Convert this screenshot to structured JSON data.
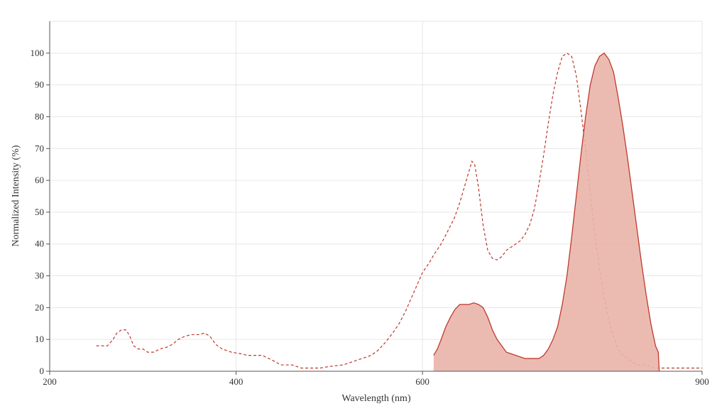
{
  "chart_data": {
    "type": "line",
    "title": "",
    "xlabel": "Wavelength (nm)",
    "ylabel": "Normalized Intensity (%)",
    "xlim": [
      200,
      900
    ],
    "ylim": [
      0,
      110
    ],
    "x_ticks": [
      200,
      400,
      600,
      900
    ],
    "y_ticks": [
      0,
      10,
      20,
      30,
      40,
      50,
      60,
      70,
      80,
      90,
      100
    ],
    "grid": true,
    "legend": "none",
    "colors": {
      "series": "#c0392b",
      "fill": "#e9b4aa"
    },
    "series": [
      {
        "style": "dashed",
        "fill": false,
        "points": [
          [
            250,
            8
          ],
          [
            262,
            8
          ],
          [
            268,
            10
          ],
          [
            272,
            12
          ],
          [
            277,
            13
          ],
          [
            282,
            13
          ],
          [
            286,
            11
          ],
          [
            290,
            8
          ],
          [
            295,
            7
          ],
          [
            300,
            7
          ],
          [
            305,
            6
          ],
          [
            312,
            6
          ],
          [
            318,
            7
          ],
          [
            325,
            7.5
          ],
          [
            332,
            8.5
          ],
          [
            338,
            10
          ],
          [
            345,
            11
          ],
          [
            352,
            11.5
          ],
          [
            360,
            11.5
          ],
          [
            366,
            12
          ],
          [
            372,
            11
          ],
          [
            378,
            8.5
          ],
          [
            385,
            7
          ],
          [
            395,
            6
          ],
          [
            405,
            5.5
          ],
          [
            412,
            5
          ],
          [
            428,
            5
          ],
          [
            435,
            4
          ],
          [
            442,
            3
          ],
          [
            448,
            2
          ],
          [
            460,
            2
          ],
          [
            465,
            1.5
          ],
          [
            470,
            1
          ],
          [
            490,
            1
          ],
          [
            500,
            1.5
          ],
          [
            515,
            2
          ],
          [
            525,
            3
          ],
          [
            535,
            4
          ],
          [
            545,
            5
          ],
          [
            552,
            6.5
          ],
          [
            560,
            9
          ],
          [
            568,
            12
          ],
          [
            575,
            15
          ],
          [
            582,
            19
          ],
          [
            588,
            23
          ],
          [
            594,
            27
          ],
          [
            600,
            31
          ],
          [
            607,
            34
          ],
          [
            613,
            37
          ],
          [
            620,
            40
          ],
          [
            627,
            44
          ],
          [
            634,
            48
          ],
          [
            640,
            53
          ],
          [
            645,
            58
          ],
          [
            650,
            63
          ],
          [
            653,
            66
          ],
          [
            656,
            65
          ],
          [
            660,
            58
          ],
          [
            665,
            46
          ],
          [
            670,
            38
          ],
          [
            675,
            35.5
          ],
          [
            680,
            35
          ],
          [
            685,
            36
          ],
          [
            690,
            38
          ],
          [
            695,
            39
          ],
          [
            700,
            40
          ],
          [
            705,
            41
          ],
          [
            710,
            43
          ],
          [
            715,
            46
          ],
          [
            720,
            51
          ],
          [
            725,
            59
          ],
          [
            730,
            68
          ],
          [
            735,
            78
          ],
          [
            740,
            87
          ],
          [
            745,
            94
          ],
          [
            750,
            99
          ],
          [
            755,
            100
          ],
          [
            760,
            99
          ],
          [
            765,
            93
          ],
          [
            770,
            82
          ],
          [
            775,
            70
          ],
          [
            780,
            56
          ],
          [
            785,
            43
          ],
          [
            790,
            32
          ],
          [
            795,
            23
          ],
          [
            800,
            16
          ],
          [
            805,
            11
          ],
          [
            810,
            7
          ],
          [
            815,
            5
          ],
          [
            820,
            4
          ],
          [
            825,
            3
          ],
          [
            830,
            2
          ],
          [
            840,
            2
          ],
          [
            848,
            1
          ],
          [
            870,
            1
          ],
          [
            900,
            1
          ]
        ]
      },
      {
        "style": "solid",
        "fill": true,
        "points": [
          [
            612,
            5
          ],
          [
            616,
            7
          ],
          [
            620,
            10
          ],
          [
            625,
            14
          ],
          [
            630,
            17
          ],
          [
            635,
            19.5
          ],
          [
            640,
            21
          ],
          [
            645,
            21
          ],
          [
            650,
            21
          ],
          [
            655,
            21.5
          ],
          [
            660,
            21
          ],
          [
            665,
            20
          ],
          [
            670,
            17
          ],
          [
            675,
            13
          ],
          [
            680,
            10
          ],
          [
            685,
            8
          ],
          [
            690,
            6
          ],
          [
            695,
            5.5
          ],
          [
            700,
            5
          ],
          [
            705,
            4.5
          ],
          [
            710,
            4
          ],
          [
            725,
            4
          ],
          [
            730,
            5
          ],
          [
            735,
            7
          ],
          [
            740,
            10
          ],
          [
            745,
            14
          ],
          [
            750,
            21
          ],
          [
            755,
            30
          ],
          [
            760,
            42
          ],
          [
            765,
            55
          ],
          [
            770,
            68
          ],
          [
            775,
            80
          ],
          [
            780,
            90
          ],
          [
            785,
            96
          ],
          [
            790,
            99
          ],
          [
            795,
            100
          ],
          [
            800,
            98
          ],
          [
            805,
            94
          ],
          [
            810,
            86
          ],
          [
            815,
            77
          ],
          [
            820,
            67
          ],
          [
            825,
            56
          ],
          [
            830,
            45
          ],
          [
            835,
            34
          ],
          [
            840,
            24
          ],
          [
            845,
            15
          ],
          [
            850,
            8
          ],
          [
            853,
            6
          ],
          [
            854,
            0
          ]
        ]
      }
    ]
  }
}
